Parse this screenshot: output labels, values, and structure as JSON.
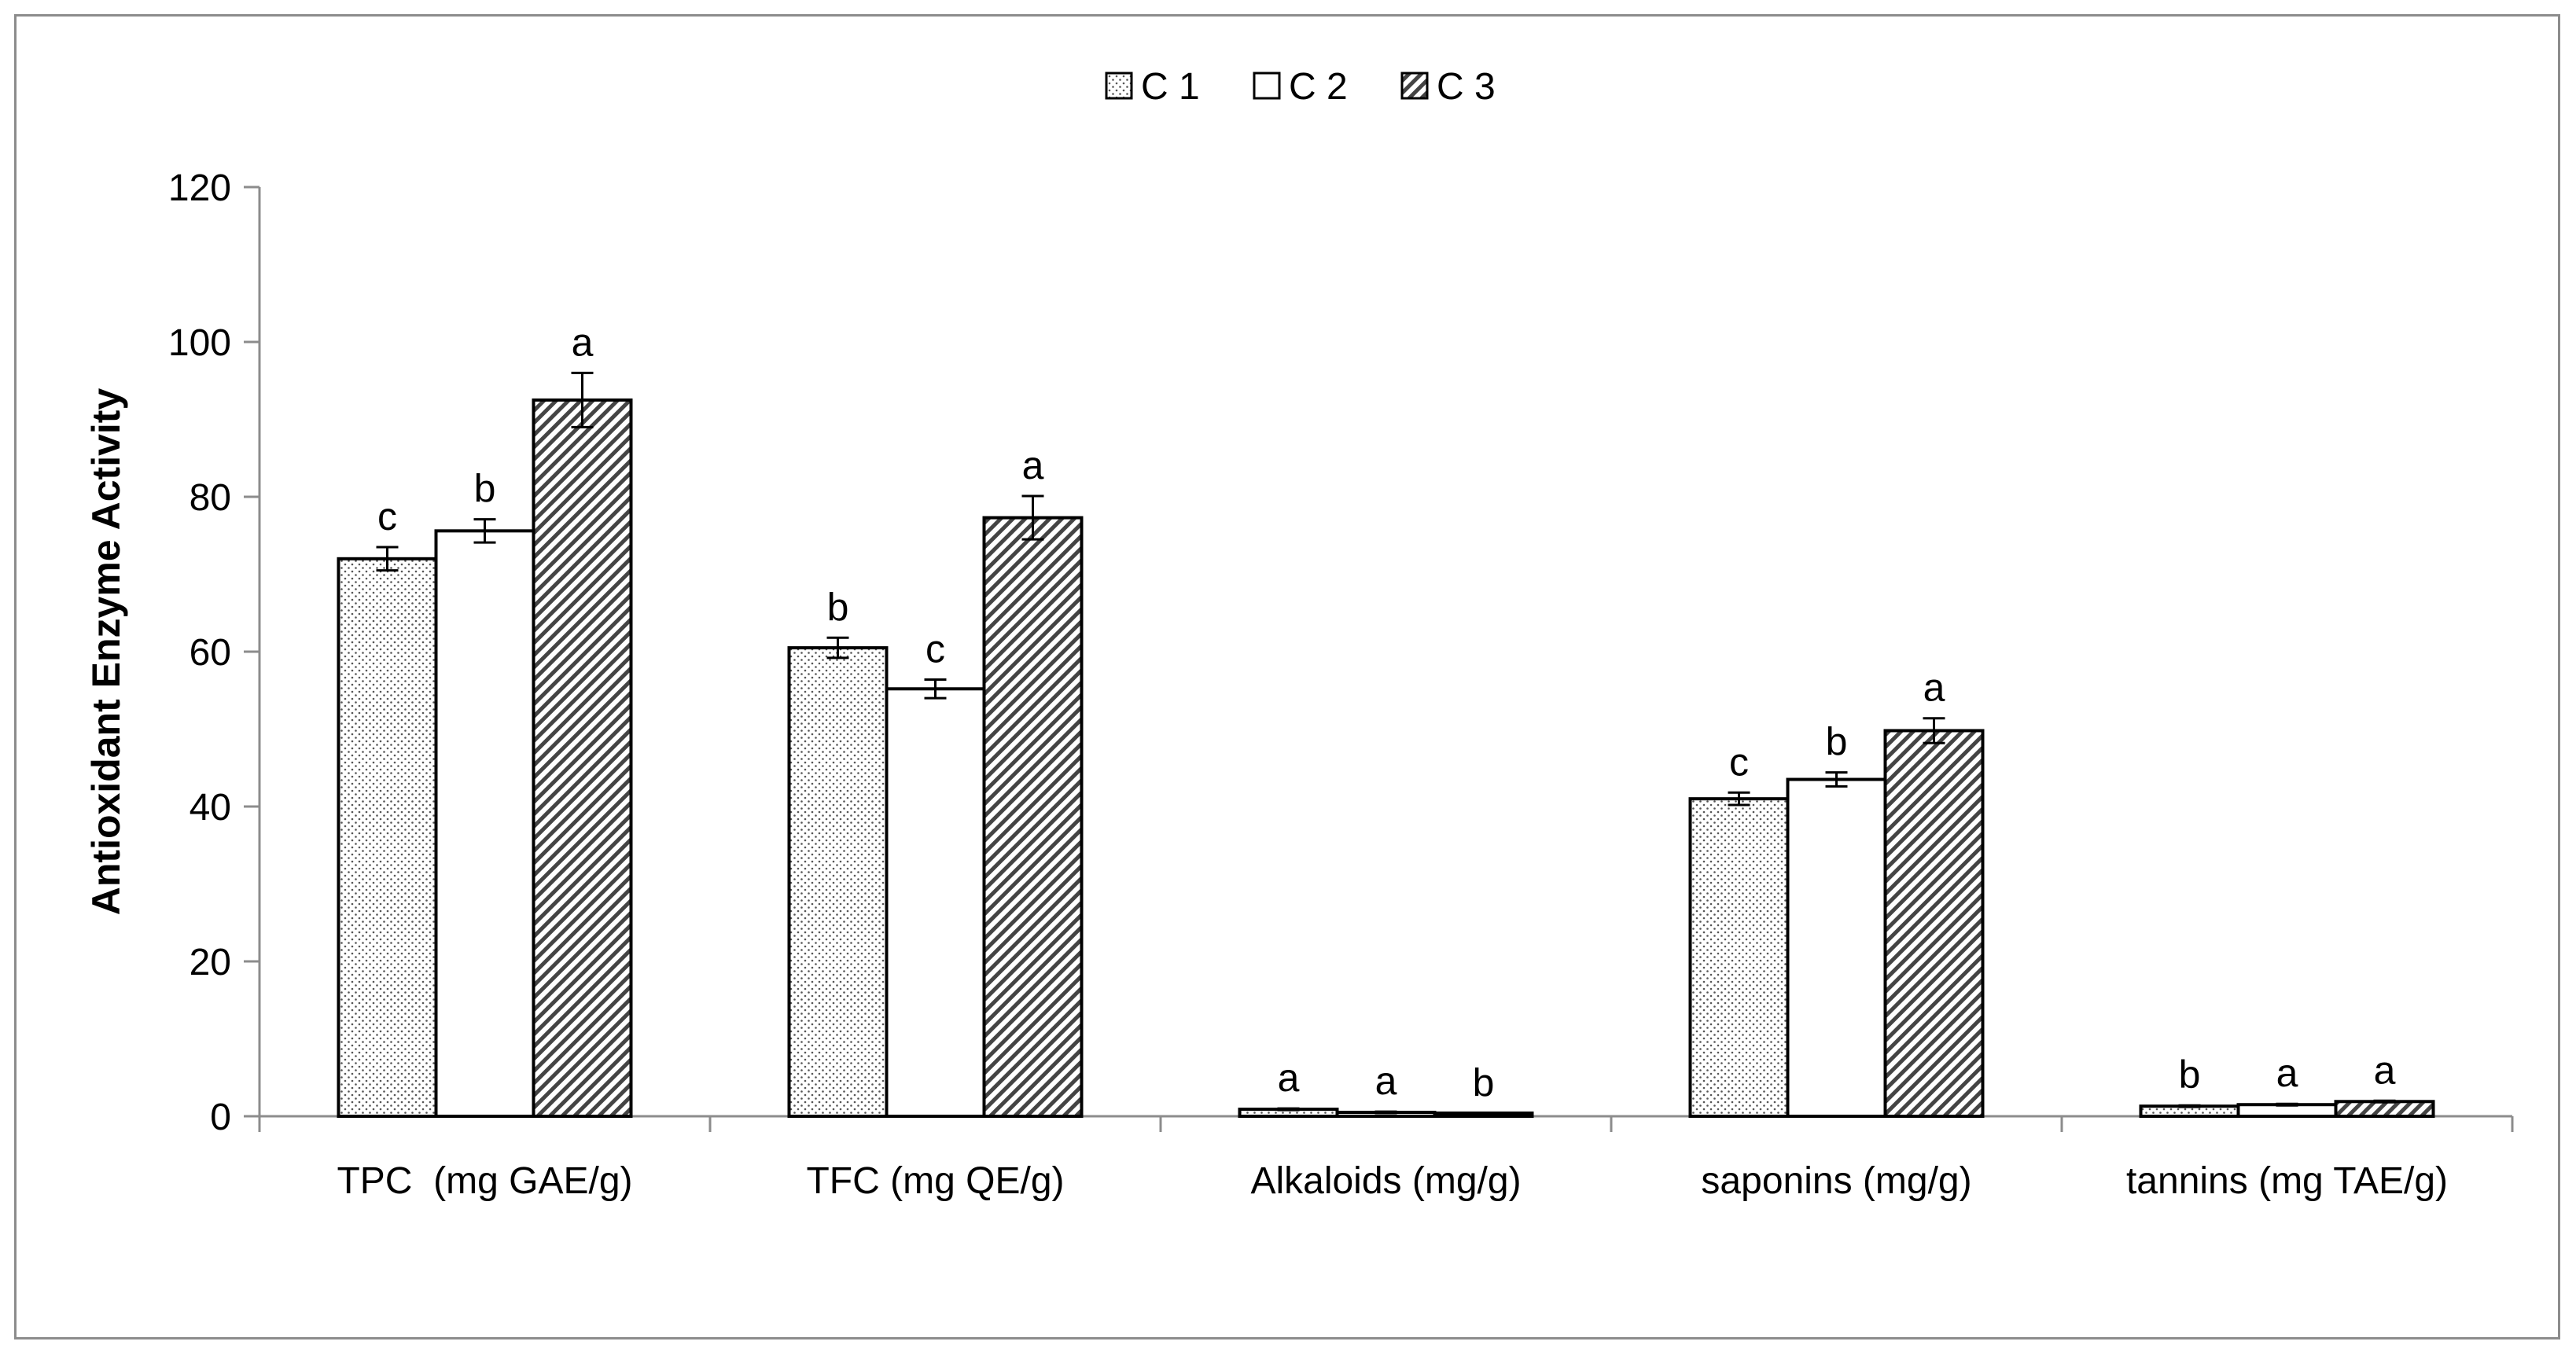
{
  "chart_data": {
    "type": "bar",
    "title": "",
    "xlabel": "",
    "ylabel": "Antioxidant Enzyme Activity",
    "ylim": [
      0,
      120
    ],
    "yticks": [
      0,
      20,
      40,
      60,
      80,
      100,
      120
    ],
    "grid": false,
    "legend_position": "top-center",
    "categories": [
      "TPC  (mg GAE/g)",
      "TFC (mg QE/g)",
      "Alkaloids (mg/g)",
      "saponins (mg/g)",
      "tannins (mg TAE/g)"
    ],
    "series": [
      {
        "name": "C 1",
        "pattern": "dotted",
        "values": [
          72,
          60.5,
          0.9,
          41,
          1.3
        ],
        "errors": [
          1.5,
          1.3,
          0.1,
          0.8,
          0.1
        ],
        "sig": [
          "c",
          "b",
          "a",
          "c",
          "b"
        ]
      },
      {
        "name": "C 2",
        "pattern": "plain",
        "values": [
          75.6,
          55.2,
          0.5,
          43.5,
          1.5
        ],
        "errors": [
          1.5,
          1.2,
          0.1,
          0.9,
          0.1
        ],
        "sig": [
          "b",
          "c",
          "a",
          "b",
          "a"
        ]
      },
      {
        "name": "C 3",
        "pattern": "hatched",
        "values": [
          92.5,
          77.3,
          0.3,
          49.8,
          1.9
        ],
        "errors": [
          3.5,
          2.8,
          0.05,
          1.6,
          0.1
        ],
        "sig": [
          "a",
          "a",
          "b",
          "a",
          "a"
        ]
      }
    ]
  },
  "colors": {
    "axis": "#8c8c8c",
    "bar_stroke": "#000000",
    "fill": "#ffffff",
    "pattern": "#444444"
  }
}
